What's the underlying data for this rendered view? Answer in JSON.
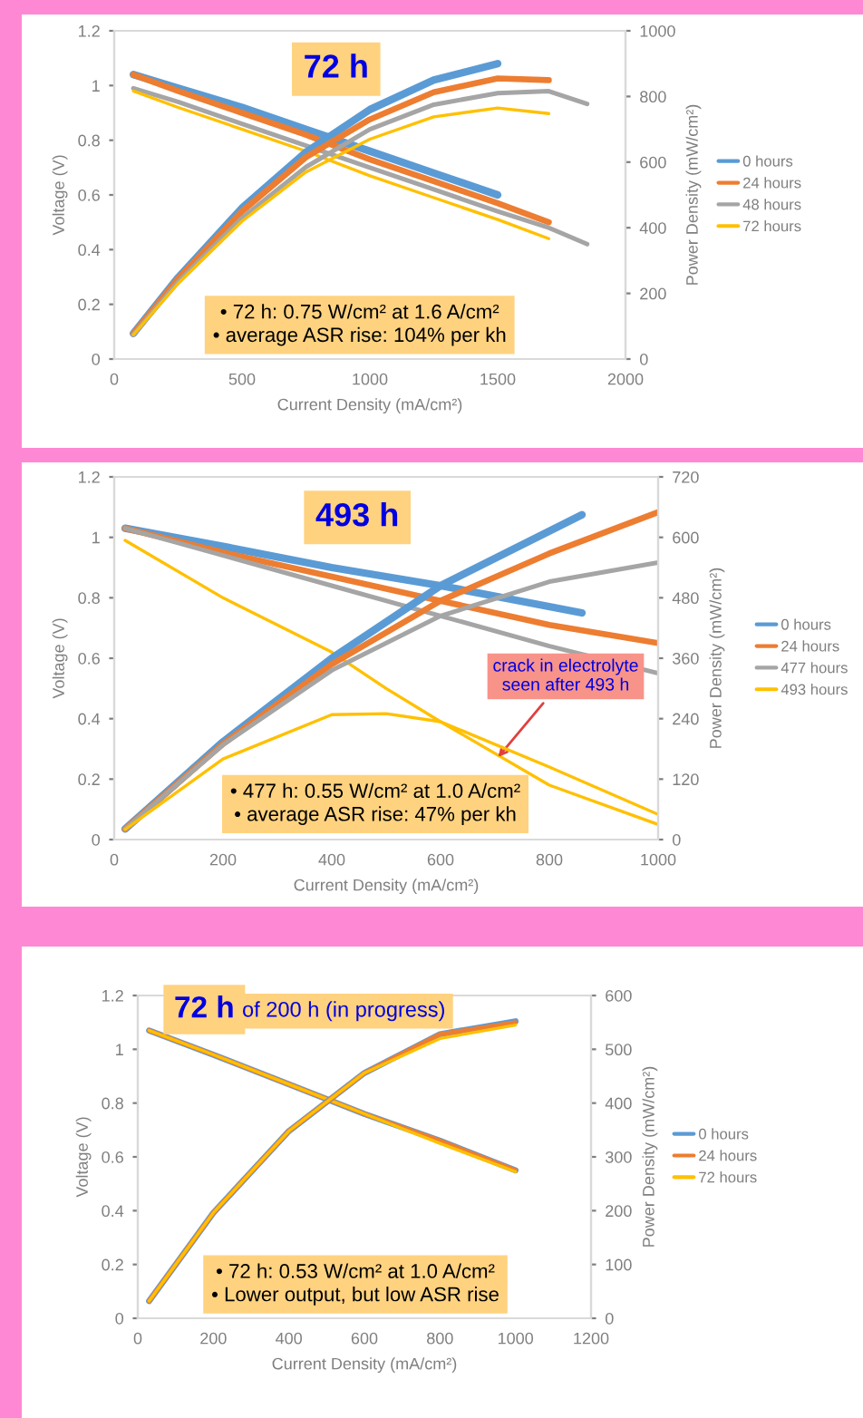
{
  "chart_data": [
    {
      "type": "line",
      "title": "72 h",
      "xlabel": "Current Density (mA/cm²)",
      "ylabel": "Voltage (V)",
      "y2label": "Power Density (mW/cm²)",
      "xlim": [
        0,
        2000
      ],
      "xticks": [
        0,
        500,
        1000,
        1500,
        2000
      ],
      "ylim": [
        0,
        1.2
      ],
      "yticks": [
        0,
        0.2,
        0.4,
        0.6,
        0.8,
        1,
        1.2
      ],
      "y2lim": [
        0,
        1000
      ],
      "y2ticks": [
        0,
        200,
        400,
        600,
        800,
        1000
      ],
      "legend": "right",
      "annotations": [
        "• 72 h: 0.75 W/cm² at 1.6 A/cm²",
        "• average ASR rise: 104% per kh"
      ],
      "series": [
        {
          "name": "0 hours",
          "color": "#5b9bd5",
          "x": [
            75,
            250,
            500,
            750,
            1000,
            1250,
            1500
          ],
          "values": [
            1.04,
            0.99,
            0.92,
            0.84,
            0.76,
            0.68,
            0.6
          ]
        },
        {
          "name": "24 hours",
          "color": "#ed7d31",
          "x": [
            75,
            250,
            500,
            750,
            1000,
            1250,
            1500,
            1700
          ],
          "values": [
            1.04,
            0.98,
            0.9,
            0.82,
            0.73,
            0.65,
            0.57,
            0.5
          ]
        },
        {
          "name": "48 hours",
          "color": "#a5a5a5",
          "x": [
            75,
            250,
            500,
            750,
            1000,
            1250,
            1500,
            1700,
            1850
          ],
          "values": [
            0.99,
            0.94,
            0.86,
            0.78,
            0.7,
            0.62,
            0.54,
            0.48,
            0.42
          ]
        },
        {
          "name": "72 hours",
          "color": "#ffc000",
          "x": [
            75,
            250,
            500,
            750,
            1000,
            1250,
            1500,
            1700
          ],
          "values": [
            0.98,
            0.92,
            0.84,
            0.76,
            0.67,
            0.59,
            0.51,
            0.44
          ]
        },
        {
          "color": "#5b9bd5",
          "axis": "y2",
          "x": [
            75,
            250,
            500,
            750,
            1000,
            1250,
            1500
          ],
          "values": [
            78,
            248,
            460,
            630,
            760,
            850,
            900
          ]
        },
        {
          "color": "#ed7d31",
          "axis": "y2",
          "x": [
            75,
            250,
            500,
            750,
            1000,
            1250,
            1500,
            1700
          ],
          "values": [
            78,
            245,
            450,
            615,
            730,
            813,
            855,
            850
          ]
        },
        {
          "color": "#a5a5a5",
          "axis": "y2",
          "x": [
            75,
            250,
            500,
            750,
            1000,
            1250,
            1500,
            1700,
            1850
          ],
          "values": [
            74,
            235,
            430,
            585,
            700,
            775,
            810,
            816,
            777
          ]
        },
        {
          "color": "#ffc000",
          "axis": "y2",
          "x": [
            75,
            250,
            500,
            750,
            1000,
            1250,
            1500,
            1700
          ],
          "values": [
            74,
            230,
            420,
            570,
            670,
            738,
            765,
            748
          ]
        }
      ]
    },
    {
      "type": "line",
      "title": "493 h",
      "xlabel": "Current Density (mA/cm²)",
      "ylabel": "Voltage (V)",
      "y2label": "Power Density (mW/cm²)",
      "xlim": [
        0,
        1000
      ],
      "xticks": [
        0,
        200,
        400,
        600,
        800,
        1000
      ],
      "ylim": [
        0,
        1.2
      ],
      "yticks": [
        0,
        0.2,
        0.4,
        0.6,
        0.8,
        1,
        1.2
      ],
      "y2lim": [
        0,
        720
      ],
      "y2ticks": [
        0,
        120,
        240,
        360,
        480,
        600,
        720
      ],
      "legend": "right",
      "annotations": [
        "• 477 h: 0.55 W/cm² at 1.0 A/cm²",
        "• average ASR rise: 47% per kh",
        {
          "text": "crack in electrolyte\nseen after 493 h",
          "x": 700,
          "y": 0.26
        }
      ],
      "series": [
        {
          "name": "0 hours",
          "color": "#5b9bd5",
          "x": [
            20,
            200,
            400,
            600,
            860
          ],
          "values": [
            1.03,
            0.97,
            0.9,
            0.84,
            0.75
          ]
        },
        {
          "name": "24 hours",
          "color": "#ed7d31",
          "x": [
            20,
            200,
            400,
            600,
            800,
            1000
          ],
          "values": [
            1.03,
            0.95,
            0.87,
            0.79,
            0.71,
            0.65
          ]
        },
        {
          "name": "477 hours",
          "color": "#a5a5a5",
          "x": [
            20,
            200,
            400,
            600,
            800,
            1000
          ],
          "values": [
            1.03,
            0.94,
            0.84,
            0.74,
            0.64,
            0.55
          ]
        },
        {
          "name": "493 hours",
          "color": "#ffc000",
          "x": [
            20,
            200,
            400,
            500,
            600,
            800,
            1000
          ],
          "values": [
            0.99,
            0.8,
            0.62,
            0.5,
            0.39,
            0.18,
            0.05
          ]
        },
        {
          "color": "#5b9bd5",
          "axis": "y2",
          "x": [
            20,
            200,
            400,
            600,
            860
          ],
          "values": [
            21,
            194,
            360,
            504,
            645
          ]
        },
        {
          "color": "#ed7d31",
          "axis": "y2",
          "x": [
            20,
            200,
            400,
            600,
            800,
            1000
          ],
          "values": [
            21,
            190,
            348,
            474,
            568,
            650
          ]
        },
        {
          "color": "#a5a5a5",
          "axis": "y2",
          "x": [
            20,
            200,
            400,
            600,
            800,
            1000
          ],
          "values": [
            21,
            188,
            336,
            444,
            512,
            550
          ]
        },
        {
          "color": "#ffc000",
          "axis": "y2",
          "x": [
            20,
            200,
            400,
            500,
            600,
            800,
            1000
          ],
          "values": [
            20,
            160,
            248,
            250,
            234,
            144,
            50
          ]
        }
      ]
    },
    {
      "type": "line",
      "title": "72 h",
      "subtitle": "of 200 h (in progress)",
      "xlabel": "Current Density (mA/cm²)",
      "ylabel": "Voltage (V)",
      "y2label": "Power Density (mW/cm²)",
      "xlim": [
        0,
        1200
      ],
      "xticks": [
        0,
        200,
        400,
        600,
        800,
        1000,
        1200
      ],
      "ylim": [
        0,
        1.2
      ],
      "yticks": [
        0,
        0.2,
        0.4,
        0.6,
        0.8,
        1,
        1.2
      ],
      "y2lim": [
        0,
        600
      ],
      "y2ticks": [
        0,
        100,
        200,
        300,
        400,
        500,
        600
      ],
      "legend": "right",
      "annotations": [
        "• 72 h: 0.53 W/cm² at 1.0 A/cm²",
        "• Lower output, but low ASR rise"
      ],
      "series": [
        {
          "name": "0 hours",
          "color": "#5b9bd5",
          "x": [
            30,
            200,
            400,
            600,
            800,
            1000
          ],
          "values": [
            1.07,
            0.98,
            0.87,
            0.76,
            0.66,
            0.55
          ]
        },
        {
          "name": "24 hours",
          "color": "#ed7d31",
          "x": [
            30,
            200,
            400,
            600,
            800,
            1000
          ],
          "values": [
            1.07,
            0.98,
            0.87,
            0.76,
            0.66,
            0.55
          ]
        },
        {
          "name": "72 hours",
          "color": "#ffc000",
          "x": [
            30,
            200,
            400,
            600,
            800,
            1000
          ],
          "values": [
            1.07,
            0.98,
            0.87,
            0.76,
            0.65,
            0.545
          ]
        },
        {
          "color": "#5b9bd5",
          "axis": "y2",
          "x": [
            30,
            200,
            400,
            600,
            800,
            1000
          ],
          "values": [
            32,
            196,
            348,
            456,
            528,
            552
          ]
        },
        {
          "color": "#ed7d31",
          "axis": "y2",
          "x": [
            30,
            200,
            400,
            600,
            800,
            1000
          ],
          "values": [
            32,
            196,
            348,
            456,
            528,
            550
          ]
        },
        {
          "color": "#ffc000",
          "axis": "y2",
          "x": [
            30,
            200,
            400,
            600,
            800,
            1000
          ],
          "values": [
            32,
            196,
            348,
            456,
            520,
            545
          ]
        }
      ]
    }
  ]
}
